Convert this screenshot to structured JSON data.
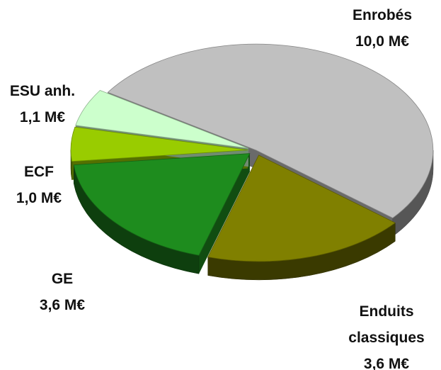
{
  "chart_data": {
    "type": "pie",
    "categories": [
      "Enrobés",
      "Enduits classiques",
      "GE",
      "ECF",
      "ESU anh."
    ],
    "values": [
      10.0,
      3.6,
      3.6,
      1.0,
      1.1
    ],
    "value_labels": [
      "10,0 M€",
      "3,6 M€",
      "3,6 M€",
      "1,0 M€",
      "1,1 M€"
    ],
    "colors": [
      "#c0c0c0",
      "#808000",
      "#1e8c1e",
      "#99cc00",
      "#ccffcc"
    ]
  }
}
